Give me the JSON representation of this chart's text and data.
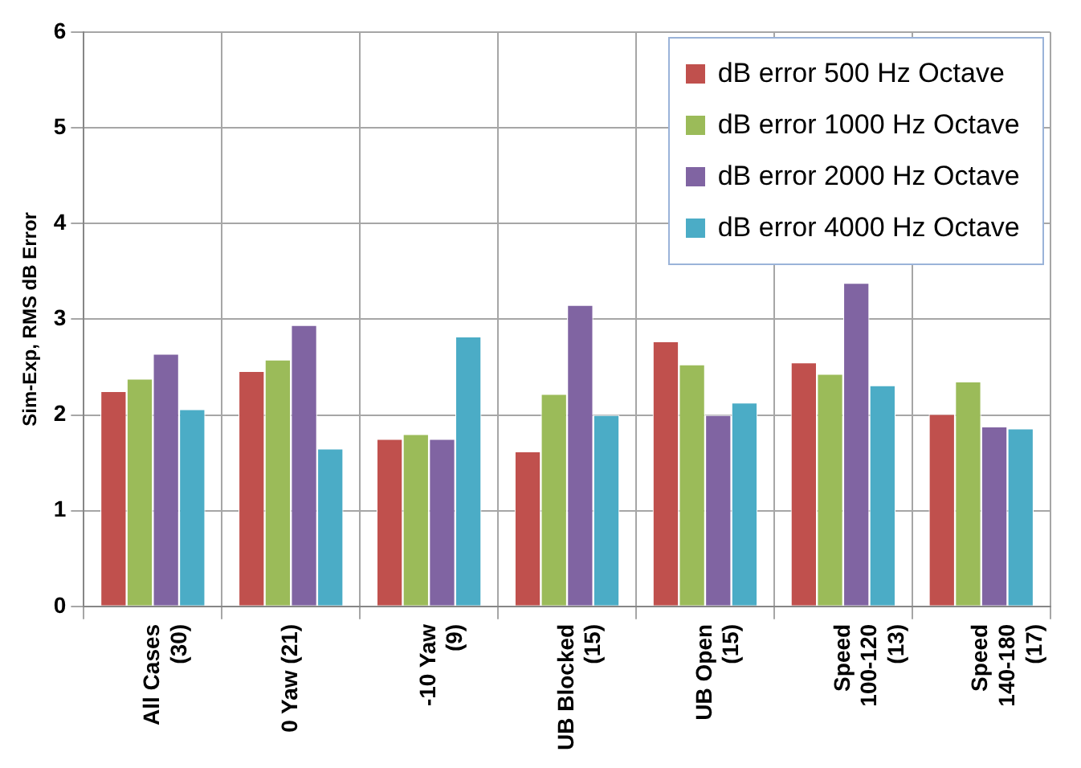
{
  "chart_data": {
    "type": "bar",
    "ylabel": "Sim-Exp, RMS dB Error",
    "categories": [
      "All Cases (30)",
      "0 Yaw (21)",
      "-10 Yaw (9)",
      "UB Blocked (15)",
      "UB Open (15)",
      "Speed 100-120 (13)",
      "Speed 140-180 (17)"
    ],
    "series": [
      {
        "name": "dB error 500 Hz Octave",
        "color": "#c0504d",
        "values": [
          2.25,
          2.46,
          1.75,
          1.62,
          2.77,
          2.55,
          2.01
        ]
      },
      {
        "name": "dB error 1000 Hz Octave",
        "color": "#9bbb59",
        "values": [
          2.38,
          2.58,
          1.8,
          2.22,
          2.53,
          2.43,
          2.35
        ]
      },
      {
        "name": "dB error 2000 Hz Octave",
        "color": "#8064a2",
        "values": [
          2.64,
          2.94,
          1.75,
          3.15,
          2.0,
          3.38,
          1.88
        ]
      },
      {
        "name": "dB error 4000 Hz Octave",
        "color": "#4bacc6",
        "values": [
          2.06,
          1.65,
          2.82,
          2.0,
          2.13,
          2.31,
          1.86
        ]
      }
    ],
    "ylim": [
      0,
      6
    ],
    "yticks": [
      0,
      1,
      2,
      3,
      4,
      5,
      6
    ],
    "grid": true,
    "legend": "top right"
  }
}
